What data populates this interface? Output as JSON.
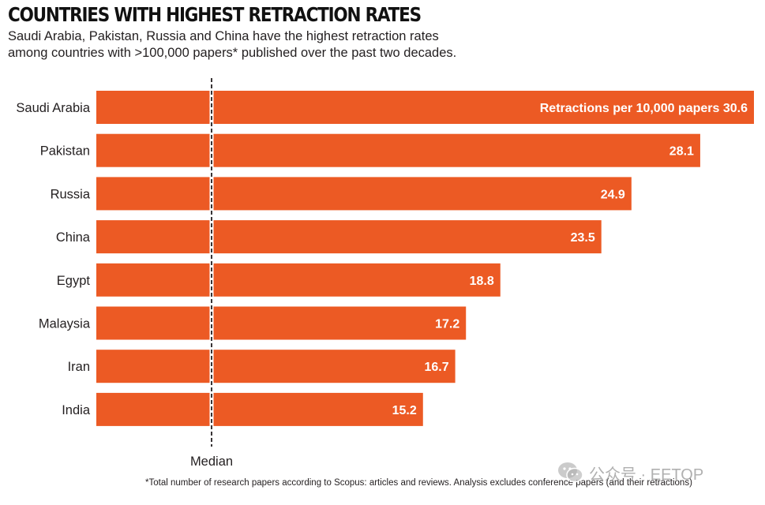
{
  "header": {
    "title": "COUNTRIES WITH HIGHEST RETRACTION RATES",
    "subtitle_line1": "Saudi Arabia, Pakistan, Russia and China have the highest retraction rates",
    "subtitle_line2": "among countries with >100,000 papers* published over the past two decades."
  },
  "colors": {
    "bar": "#ec5a24",
    "median_line": "#231f20"
  },
  "chart_data": {
    "type": "bar",
    "orientation": "horizontal",
    "title": "COUNTRIES WITH HIGHEST RETRACTION RATES",
    "xlabel": "Retractions per 10,000 papers",
    "ylabel": "",
    "value_prefix": "Retractions per 10,000 papers",
    "categories": [
      "Saudi Arabia",
      "Pakistan",
      "Russia",
      "China",
      "Egypt",
      "Malaysia",
      "Iran",
      "India"
    ],
    "values": [
      30.6,
      28.1,
      24.9,
      23.5,
      18.8,
      17.2,
      16.7,
      15.2
    ],
    "value_labels": [
      "30.6",
      "28.1",
      "24.9",
      "23.5",
      "18.8",
      "17.2",
      "16.7",
      "15.2"
    ],
    "xlim": [
      0,
      30.6
    ],
    "median_label": "Median",
    "grid": false,
    "legend": "none"
  },
  "footnote": "*Total number of research papers according to Scopus: articles and reviews. Analysis excludes conference papers (and their retractions)",
  "watermark": {
    "text": "公众号 · EETOP",
    "icon": "wechat-icon"
  }
}
